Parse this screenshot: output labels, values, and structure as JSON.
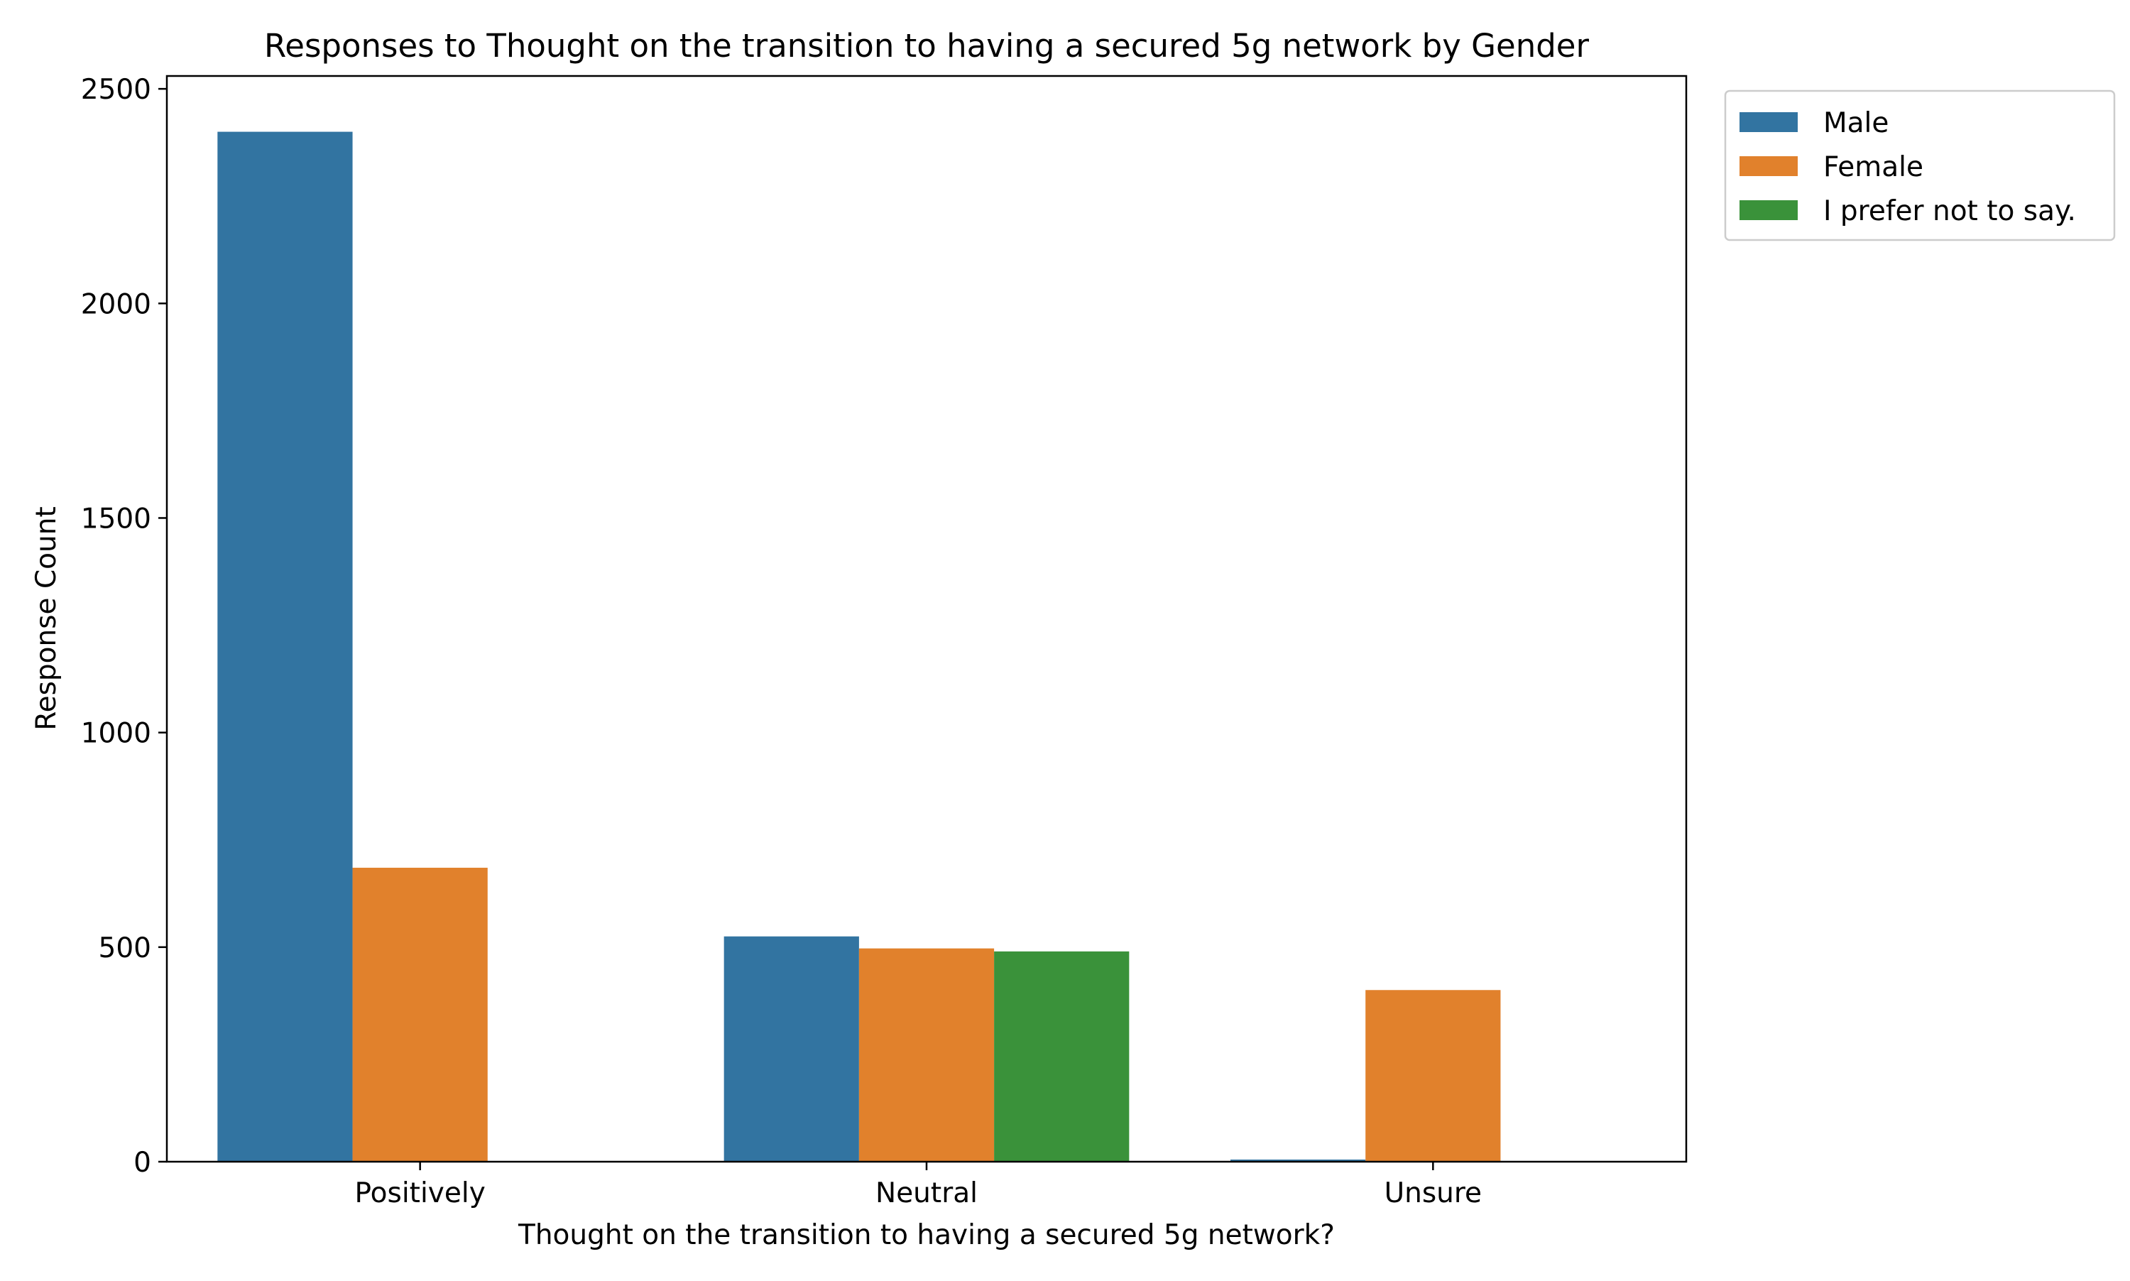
{
  "chart_data": {
    "type": "bar",
    "title": "Responses to Thought on the transition to having a secured 5g network by Gender",
    "xlabel": "Thought on the transition to having a secured 5g network?",
    "ylabel": "Response Count",
    "categories": [
      "Positively",
      "Neutral",
      "Unsure"
    ],
    "series": [
      {
        "name": "Male",
        "color": "#3274a1",
        "values": [
          2400,
          525,
          5
        ]
      },
      {
        "name": "Female",
        "color": "#e1812c",
        "values": [
          685,
          497,
          400
        ]
      },
      {
        "name": "I prefer not to say.",
        "color": "#3a923a",
        "values": [
          0,
          490,
          0
        ]
      }
    ],
    "ylim": [
      0,
      2530
    ],
    "yticks": [
      0,
      500,
      1000,
      1500,
      2000,
      2500
    ],
    "ytick_labels": [
      "0",
      "500",
      "1000",
      "1500",
      "2000",
      "2500"
    ],
    "grid": false,
    "legend_position": "outside-top-right"
  }
}
